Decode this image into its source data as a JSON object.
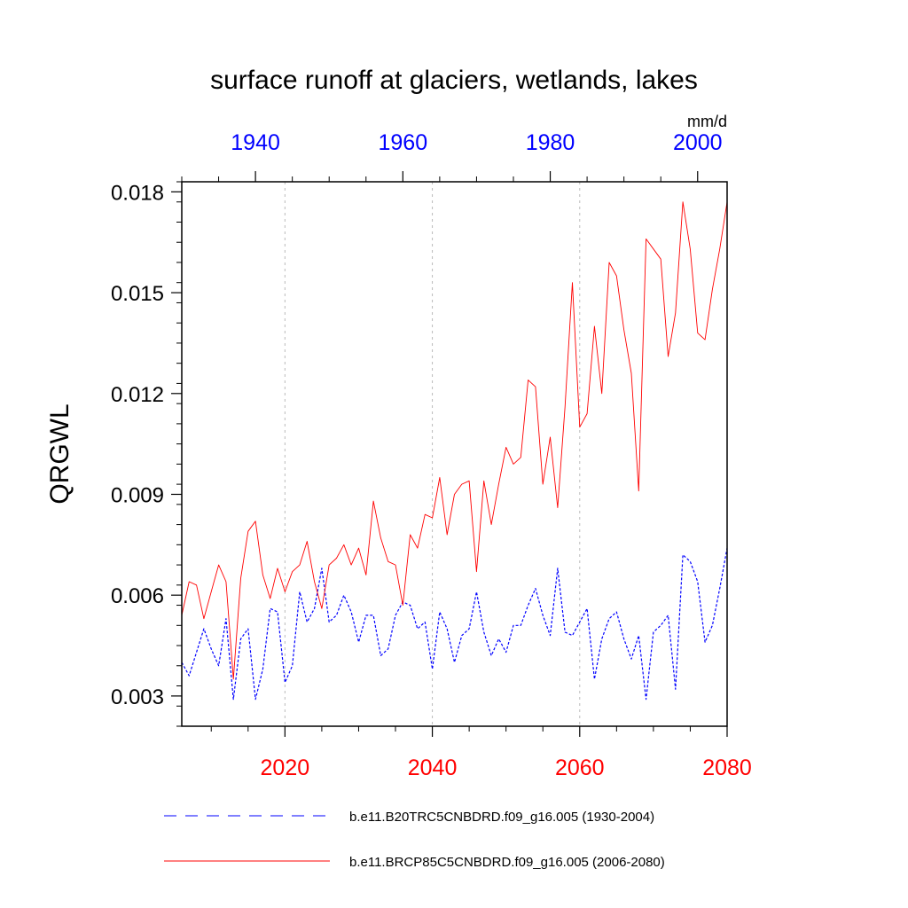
{
  "chart_data": {
    "type": "line",
    "title": "surface runoff at glaciers, wetlands, lakes",
    "ylabel": "QRGWL",
    "units": "mm/d",
    "ylim": [
      0.0021,
      0.0183
    ],
    "yticks": [
      "0.003",
      "0.006",
      "0.009",
      "0.012",
      "0.015",
      "0.018"
    ],
    "ytick_values": [
      0.003,
      0.006,
      0.009,
      0.012,
      0.015,
      0.018
    ],
    "x_bottom": {
      "range": [
        2006,
        2080
      ],
      "ticks": [
        2020,
        2040,
        2060,
        2080
      ],
      "tick_labels": [
        "2020",
        "2040",
        "2060",
        "2080"
      ],
      "color": "#ff0000"
    },
    "x_top": {
      "range": [
        1930,
        2004
      ],
      "ticks": [
        1940,
        1960,
        1980,
        2000
      ],
      "tick_labels": [
        "1940",
        "1960",
        "1980",
        "2000"
      ],
      "color": "#0000ff"
    },
    "grid": "vertical dotted at 2020, 2040, 2060",
    "legend_position": "bottom",
    "series": [
      {
        "name": "b.e11.B20TRC5CNBDRD.f09_g16.005 (1930-2004)",
        "axis": "top",
        "color": "#0000ff",
        "dash": "dashed",
        "x": [
          1930,
          1931,
          1932,
          1933,
          1934,
          1935,
          1936,
          1937,
          1938,
          1939,
          1940,
          1941,
          1942,
          1943,
          1944,
          1945,
          1946,
          1947,
          1948,
          1949,
          1950,
          1951,
          1952,
          1953,
          1954,
          1955,
          1956,
          1957,
          1958,
          1959,
          1960,
          1961,
          1962,
          1963,
          1964,
          1965,
          1966,
          1967,
          1968,
          1969,
          1970,
          1971,
          1972,
          1973,
          1974,
          1975,
          1976,
          1977,
          1978,
          1979,
          1980,
          1981,
          1982,
          1983,
          1984,
          1985,
          1986,
          1987,
          1988,
          1989,
          1990,
          1991,
          1992,
          1993,
          1994,
          1995,
          1996,
          1997,
          1998,
          1999,
          2000,
          2001,
          2002,
          2003,
          2004
        ],
        "values": [
          0.004,
          0.0036,
          0.0043,
          0.005,
          0.0044,
          0.0039,
          0.0053,
          0.0029,
          0.0047,
          0.005,
          0.0029,
          0.0038,
          0.0056,
          0.0055,
          0.0034,
          0.0039,
          0.0061,
          0.0052,
          0.0056,
          0.0068,
          0.0052,
          0.0054,
          0.006,
          0.0055,
          0.0046,
          0.0054,
          0.0054,
          0.0042,
          0.0044,
          0.0054,
          0.0058,
          0.0057,
          0.005,
          0.0052,
          0.0038,
          0.0055,
          0.005,
          0.004,
          0.0048,
          0.005,
          0.0061,
          0.0049,
          0.0042,
          0.0047,
          0.0043,
          0.0051,
          0.0051,
          0.0057,
          0.0062,
          0.0054,
          0.0048,
          0.0068,
          0.0049,
          0.0048,
          0.0052,
          0.0056,
          0.0035,
          0.0047,
          0.0053,
          0.0055,
          0.0047,
          0.0041,
          0.0048,
          0.0029,
          0.0049,
          0.0051,
          0.0054,
          0.0032,
          0.0072,
          0.007,
          0.0064,
          0.0046,
          0.0051,
          0.0062,
          0.0074
        ]
      },
      {
        "name": "b.e11.BRCP85C5CNBDRD.f09_g16.005 (2006-2080)",
        "axis": "bottom",
        "color": "#ff0000",
        "dash": "solid",
        "x": [
          2006,
          2007,
          2008,
          2009,
          2010,
          2011,
          2012,
          2013,
          2014,
          2015,
          2016,
          2017,
          2018,
          2019,
          2020,
          2021,
          2022,
          2023,
          2024,
          2025,
          2026,
          2027,
          2028,
          2029,
          2030,
          2031,
          2032,
          2033,
          2034,
          2035,
          2036,
          2037,
          2038,
          2039,
          2040,
          2041,
          2042,
          2043,
          2044,
          2045,
          2046,
          2047,
          2048,
          2049,
          2050,
          2051,
          2052,
          2053,
          2054,
          2055,
          2056,
          2057,
          2058,
          2059,
          2060,
          2061,
          2062,
          2063,
          2064,
          2065,
          2066,
          2067,
          2068,
          2069,
          2070,
          2071,
          2072,
          2073,
          2074,
          2075,
          2076,
          2077,
          2078,
          2079,
          2080
        ],
        "values": [
          0.0054,
          0.0064,
          0.0063,
          0.0053,
          0.0061,
          0.0069,
          0.0064,
          0.0035,
          0.0065,
          0.0079,
          0.0082,
          0.0066,
          0.0059,
          0.0068,
          0.0061,
          0.0067,
          0.0069,
          0.0076,
          0.0064,
          0.0056,
          0.0069,
          0.0071,
          0.0075,
          0.0069,
          0.0074,
          0.0066,
          0.0088,
          0.0077,
          0.007,
          0.0069,
          0.0057,
          0.0078,
          0.0074,
          0.0084,
          0.0083,
          0.0095,
          0.0078,
          0.009,
          0.0093,
          0.0094,
          0.0067,
          0.0094,
          0.0081,
          0.0093,
          0.0104,
          0.0099,
          0.0101,
          0.0124,
          0.0122,
          0.0093,
          0.0107,
          0.0086,
          0.0116,
          0.0153,
          0.011,
          0.0114,
          0.014,
          0.012,
          0.0159,
          0.0155,
          0.0139,
          0.0126,
          0.0091,
          0.0166,
          0.0163,
          0.016,
          0.0131,
          0.0144,
          0.0177,
          0.0163,
          0.0138,
          0.0136,
          0.0151,
          0.0163,
          0.0177
        ]
      }
    ]
  }
}
